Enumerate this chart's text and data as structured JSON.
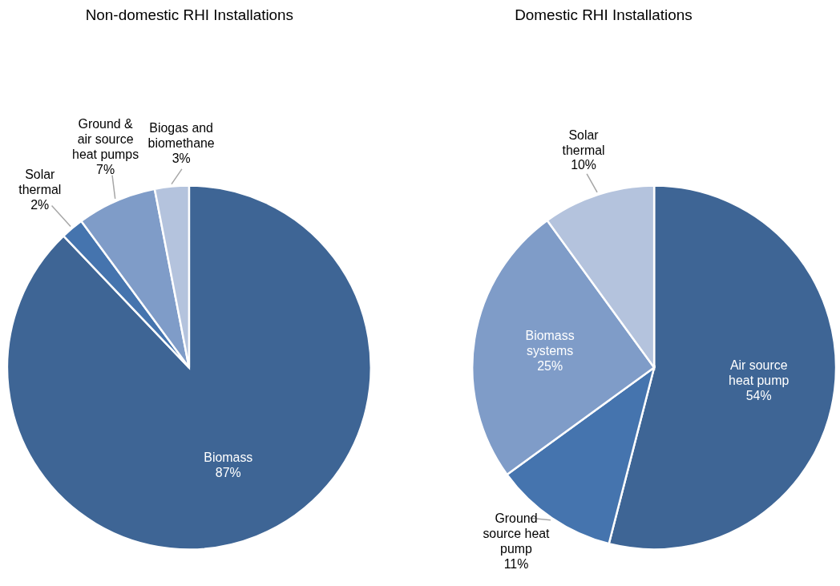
{
  "chart_data": [
    {
      "type": "pie",
      "title": "Non-domestic RHI Installations",
      "categories": [
        "Biomass",
        "Solar thermal",
        "Ground & air source heat pumps",
        "Biogas and biomethane"
      ],
      "values": [
        87,
        2,
        7,
        3
      ],
      "value_labels": [
        "87%",
        "2%",
        "7%",
        "3%"
      ],
      "colors": [
        "#3e6595",
        "#4574ae",
        "#7f9cc8",
        "#b4c3dd"
      ]
    },
    {
      "type": "pie",
      "title": "Domestic RHI Installations",
      "categories": [
        "Air source heat pump",
        "Ground source heat pump",
        "Biomass systems",
        "Solar thermal"
      ],
      "values": [
        54,
        11,
        25,
        10
      ],
      "value_labels": [
        "54%",
        "11%",
        "25%",
        "10%"
      ],
      "colors": [
        "#3e6595",
        "#4574ae",
        "#7f9cc8",
        "#b4c3dd"
      ]
    }
  ]
}
